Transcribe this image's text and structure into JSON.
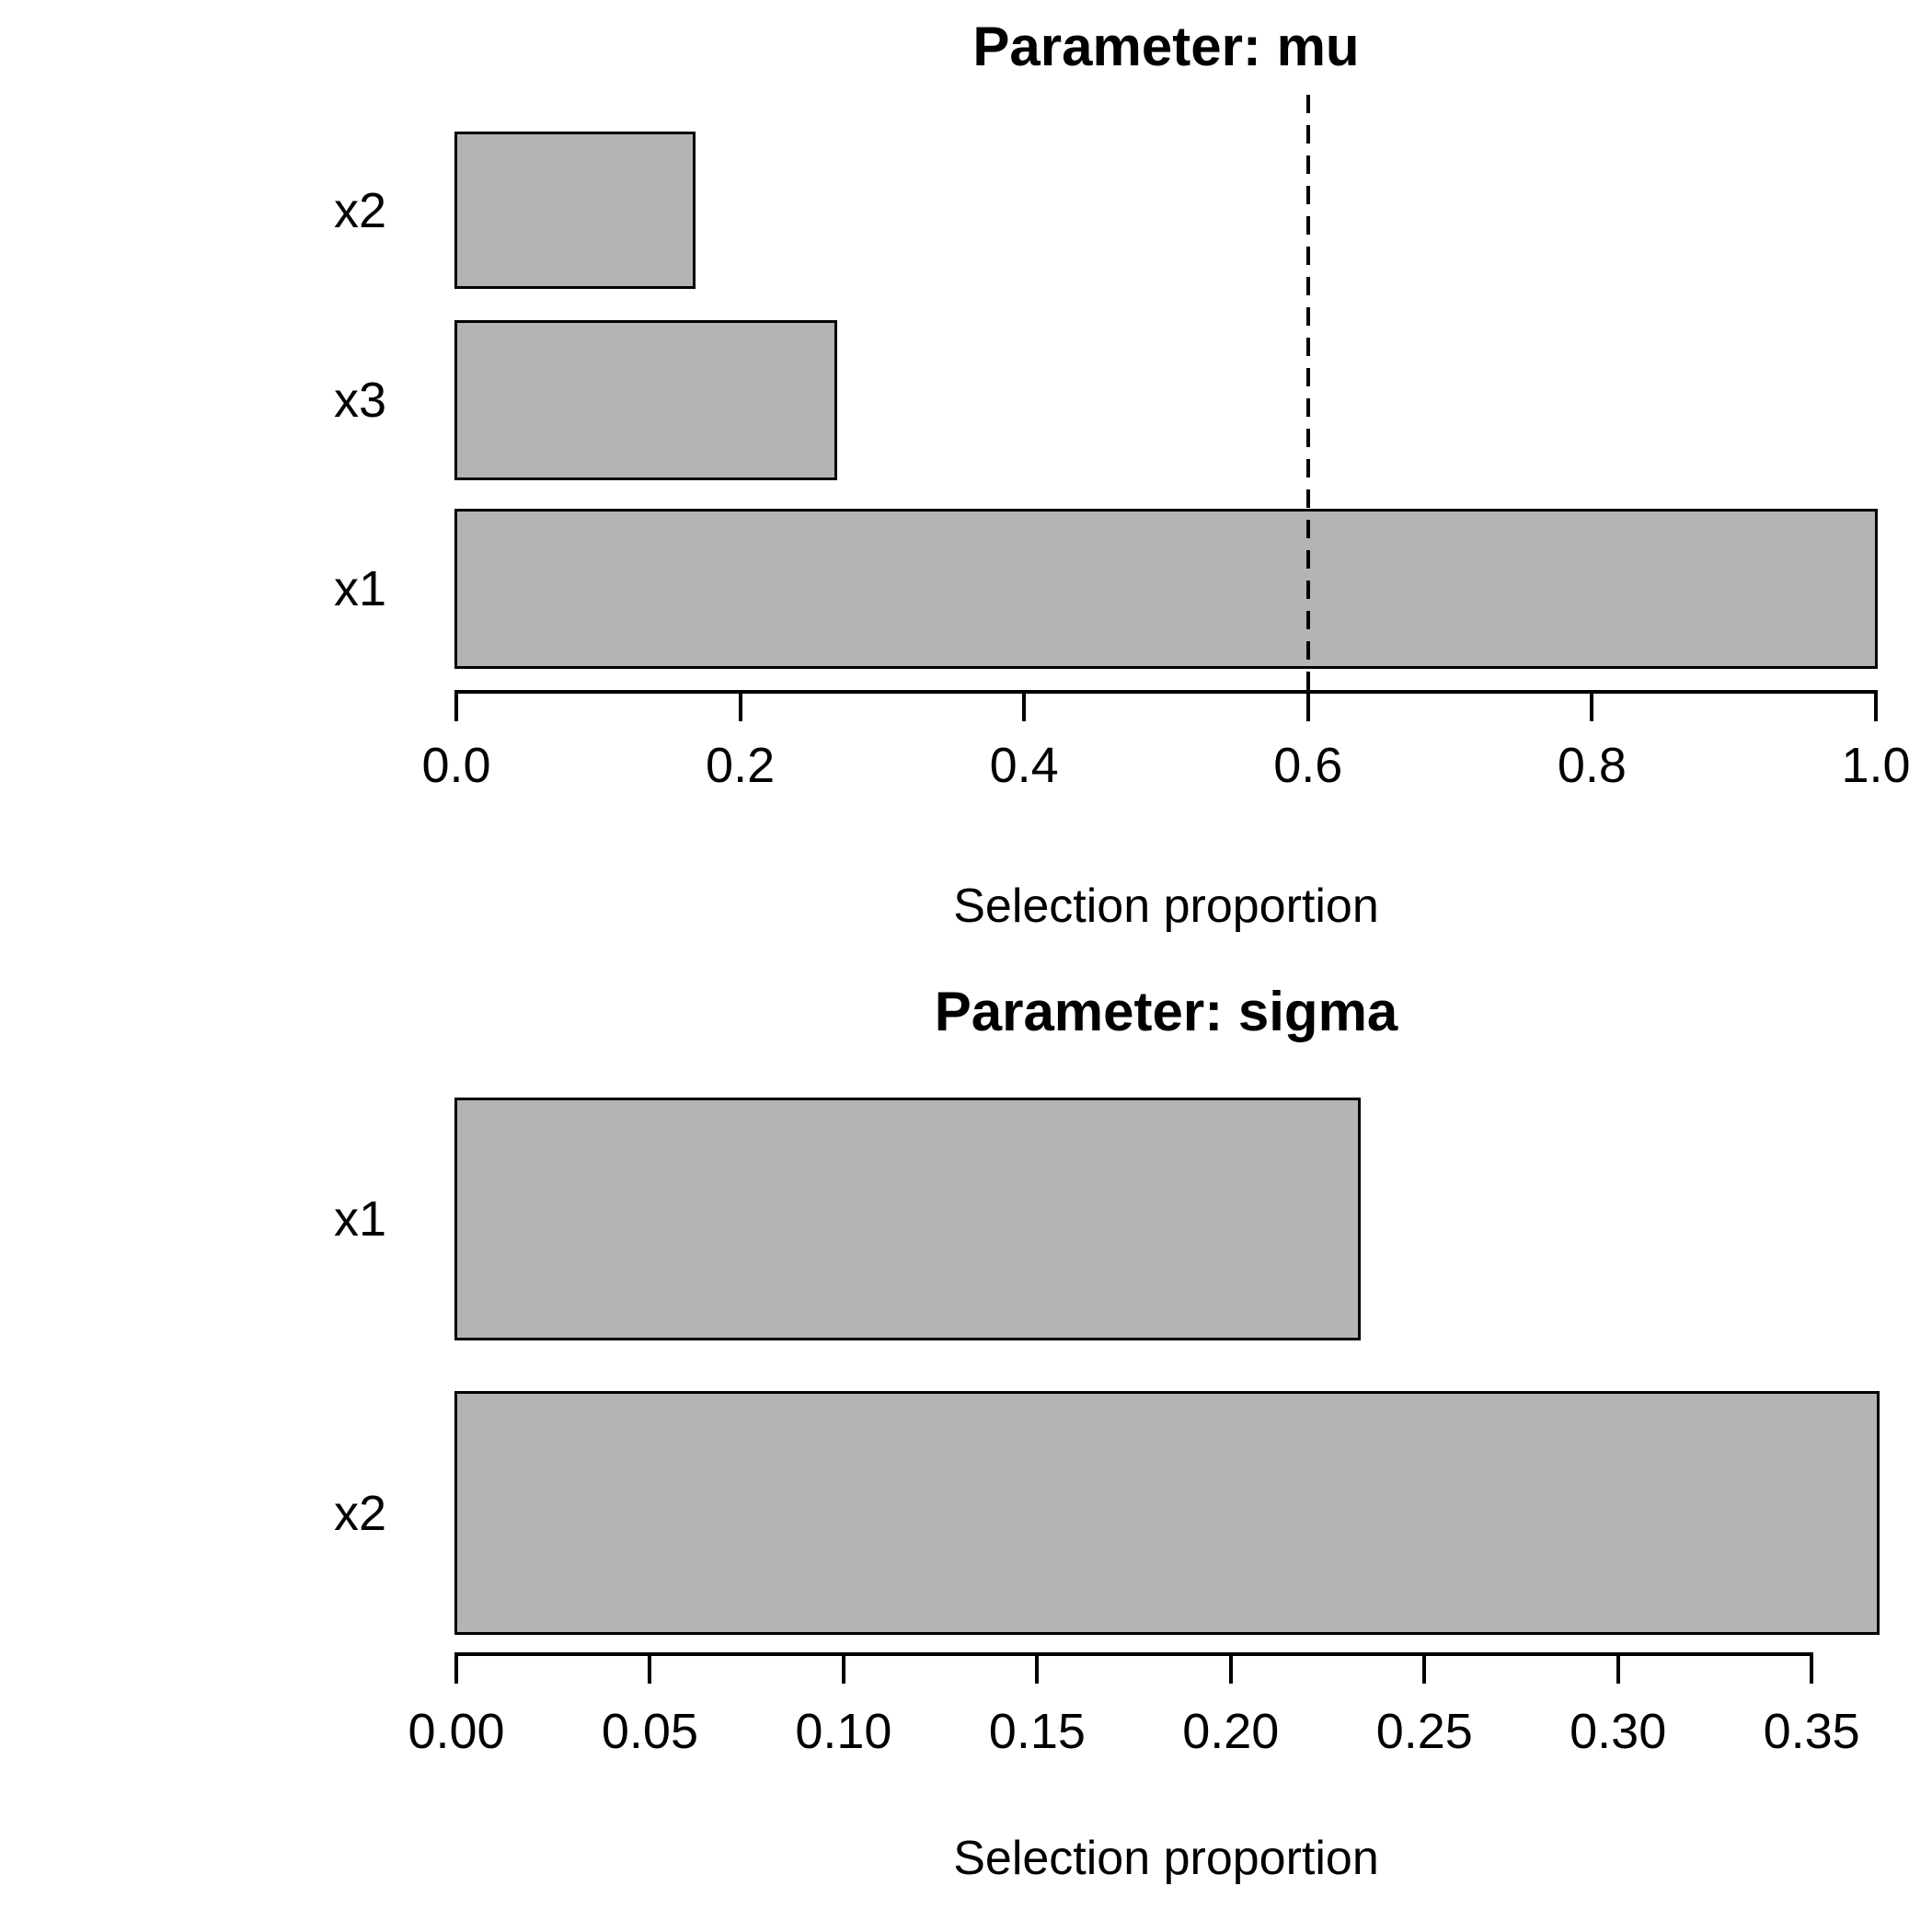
{
  "figure": {
    "description": "Two stacked horizontal bar charts of selection proportions per parameter",
    "background": "#ffffff"
  },
  "colors": {
    "bar_fill": "#b4b4b4",
    "bar_border": "#000000",
    "axis": "#000000",
    "text": "#000000"
  },
  "chart_data": [
    {
      "type": "bar",
      "orientation": "horizontal",
      "title": "Parameter: mu",
      "xlabel": "Selection proportion",
      "categories": [
        "x2",
        "x3",
        "x1"
      ],
      "values": [
        0.167,
        0.267,
        1.0
      ],
      "xlim": [
        0.0,
        1.0
      ],
      "tick_values": [
        0.0,
        0.2,
        0.4,
        0.6,
        0.8,
        1.0
      ],
      "tick_labels": [
        "0.0",
        "0.2",
        "0.4",
        "0.6",
        "0.8",
        "1.0"
      ],
      "threshold_line": {
        "x": 0.6,
        "style": "dashed"
      },
      "grid": false,
      "legend": false
    },
    {
      "type": "bar",
      "orientation": "horizontal",
      "title": "Parameter: sigma",
      "xlabel": "Selection proportion",
      "categories": [
        "x1",
        "x2"
      ],
      "values": [
        0.233,
        0.367
      ],
      "xlim": [
        0.0,
        0.367
      ],
      "tick_values": [
        0.0,
        0.05,
        0.1,
        0.15,
        0.2,
        0.25,
        0.3,
        0.35
      ],
      "tick_labels": [
        "0.00",
        "0.05",
        "0.10",
        "0.15",
        "0.20",
        "0.25",
        "0.30",
        "0.35"
      ],
      "threshold_line": null,
      "grid": false,
      "legend": false
    }
  ]
}
